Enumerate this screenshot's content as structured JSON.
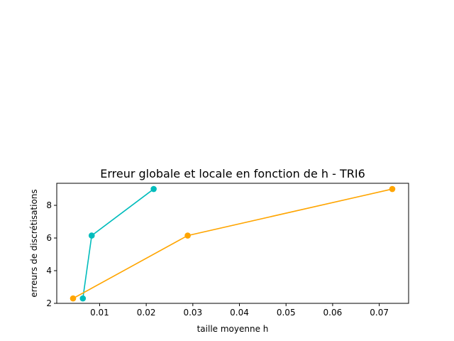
{
  "chart_data": {
    "type": "line",
    "title": "Erreur globale et locale en fonction de h - TRI6",
    "xlabel": "taille moyenne h",
    "ylabel": "erreurs de discrétisations",
    "xlim": [
      0.0008,
      0.0763
    ],
    "ylim": [
      2.0,
      9.35
    ],
    "xticks": [
      0.01,
      0.02,
      0.03,
      0.04,
      0.05,
      0.06,
      0.07
    ],
    "xtick_labels": [
      "0.01",
      "0.02",
      "0.03",
      "0.04",
      "0.05",
      "0.06",
      "0.07"
    ],
    "yticks": [
      2,
      4,
      6,
      8
    ],
    "ytick_labels": [
      "2",
      "4",
      "6",
      "8"
    ],
    "grid": false,
    "legend": false,
    "series": [
      {
        "color": "#00bcbc",
        "marker": "circle",
        "x": [
          0.0216,
          0.0083,
          0.0064
        ],
        "y": [
          9.0,
          6.15,
          2.3
        ]
      },
      {
        "color": "#ffa500",
        "marker": "circle",
        "x": [
          0.0728,
          0.0289,
          0.0043
        ],
        "y": [
          9.0,
          6.15,
          2.3
        ]
      }
    ]
  }
}
